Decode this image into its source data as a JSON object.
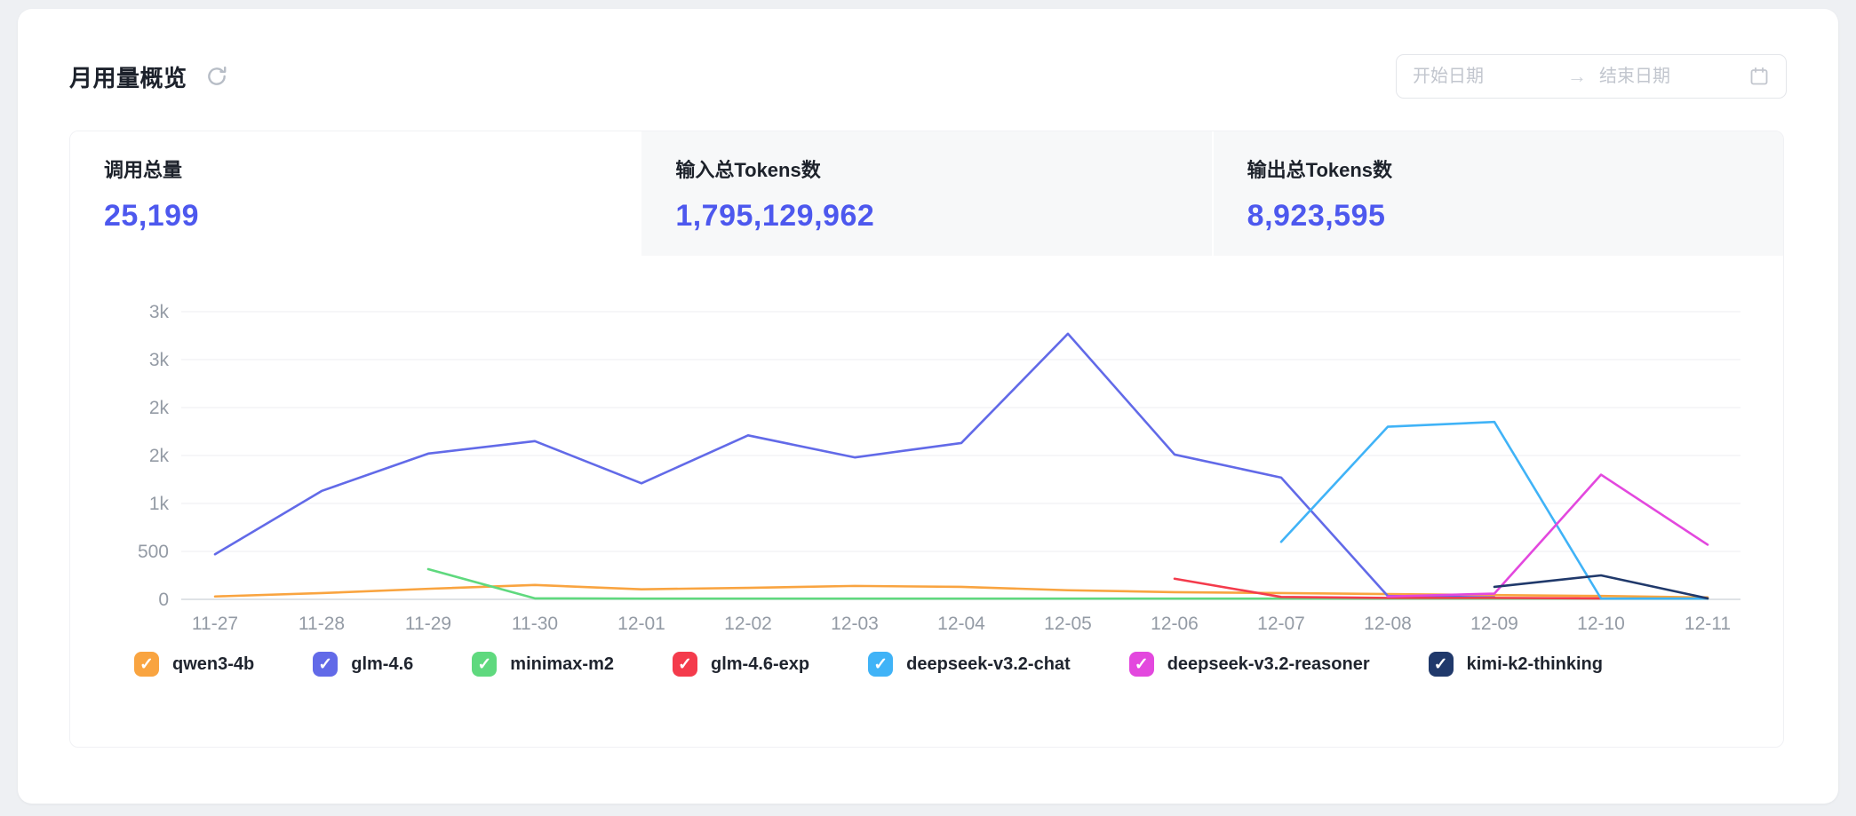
{
  "header": {
    "title": "月用量概览"
  },
  "date_range": {
    "start_placeholder": "开始日期",
    "end_placeholder": "结束日期",
    "separator": "→"
  },
  "stats": [
    {
      "label": "调用总量",
      "value": "25,199",
      "active": true
    },
    {
      "label": "输入总Tokens数",
      "value": "1,795,129,962",
      "active": false
    },
    {
      "label": "输出总Tokens数",
      "value": "8,923,595",
      "active": false
    }
  ],
  "colors": {
    "accent_value": "#4d58ee",
    "gridline": "#f3f4f6",
    "axis_line": "#dfe2e6",
    "axis_text": "#949ba5"
  },
  "chart_data": {
    "type": "line",
    "title": "",
    "xlabel": "",
    "ylabel": "",
    "x": [
      "11-27",
      "11-28",
      "11-29",
      "11-30",
      "12-01",
      "12-02",
      "12-03",
      "12-04",
      "12-05",
      "12-06",
      "12-07",
      "12-08",
      "12-09",
      "12-10",
      "12-11"
    ],
    "ylim": [
      0,
      3000
    ],
    "grid": true,
    "legend_position": "bottom",
    "y_ticks": [
      {
        "value": 0,
        "label": "0"
      },
      {
        "value": 500,
        "label": "500"
      },
      {
        "value": 1000,
        "label": "1k"
      },
      {
        "value": 1500,
        "label": "2k"
      },
      {
        "value": 2000,
        "label": "2k"
      },
      {
        "value": 2500,
        "label": "3k"
      },
      {
        "value": 3000,
        "label": "3k"
      }
    ],
    "series": [
      {
        "name": "qwen3-4b",
        "color": "#f9a440",
        "checked": true,
        "values": [
          30,
          65,
          110,
          150,
          105,
          120,
          140,
          130,
          95,
          75,
          65,
          55,
          45,
          35,
          20
        ]
      },
      {
        "name": "glm-4.6",
        "color": "#626ae8",
        "checked": true,
        "values": [
          470,
          1130,
          1520,
          1650,
          1210,
          1710,
          1480,
          1630,
          2770,
          1510,
          1270,
          35,
          20,
          null,
          null
        ]
      },
      {
        "name": "minimax-m2",
        "color": "#5fd97e",
        "checked": true,
        "values": [
          null,
          null,
          315,
          10,
          8,
          8,
          8,
          8,
          8,
          8,
          8,
          8,
          8,
          8,
          8
        ]
      },
      {
        "name": "glm-4.6-exp",
        "color": "#f43b4c",
        "checked": true,
        "values": [
          null,
          null,
          null,
          null,
          null,
          null,
          null,
          null,
          null,
          215,
          25,
          15,
          15,
          10,
          null
        ]
      },
      {
        "name": "deepseek-v3.2-chat",
        "color": "#40b3f7",
        "checked": true,
        "values": [
          null,
          null,
          null,
          null,
          null,
          null,
          null,
          null,
          null,
          null,
          600,
          1800,
          1850,
          8,
          8
        ]
      },
      {
        "name": "deepseek-v3.2-reasoner",
        "color": "#e348de",
        "checked": true,
        "values": [
          null,
          null,
          null,
          null,
          null,
          null,
          null,
          null,
          null,
          null,
          null,
          30,
          60,
          1300,
          570
        ]
      },
      {
        "name": "kimi-k2-thinking",
        "color": "#20396b",
        "checked": true,
        "values": [
          null,
          null,
          null,
          null,
          null,
          null,
          null,
          null,
          null,
          null,
          null,
          null,
          130,
          250,
          10
        ]
      }
    ]
  }
}
